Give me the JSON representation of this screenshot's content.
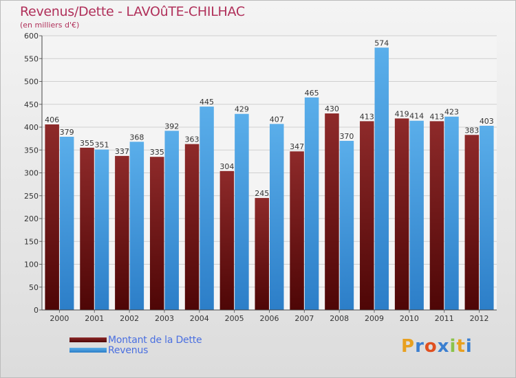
{
  "header": {
    "title": "Revenus/Dette - LAVOûTE-CHILHAC",
    "subtitle": "(en milliers d'€)"
  },
  "legend": {
    "debt_label": "Montant de la Dette",
    "revenue_label": "Revenus"
  },
  "logo": {
    "letters": [
      "P",
      "r",
      "o",
      "x",
      "i",
      "t",
      "i"
    ],
    "colors": [
      "#e8a020",
      "#3b7fd0",
      "#e05020",
      "#3b7fd0",
      "#8bc34a",
      "#e8a020",
      "#3b7fd0"
    ]
  },
  "colors": {
    "debt": "#7a1a1a",
    "revenue": "#4a9be0",
    "title": "#b0305a"
  },
  "chart_data": {
    "type": "bar",
    "title": "Revenus/Dette - LAVOûTE-CHILHAC",
    "ylabel": "(en milliers d'€)",
    "xlabel": "",
    "categories": [
      "2000",
      "2001",
      "2002",
      "2003",
      "2004",
      "2005",
      "2006",
      "2007",
      "2008",
      "2009",
      "2010",
      "2011",
      "2012"
    ],
    "series": [
      {
        "name": "Montant de la Dette",
        "values": [
          406,
          355,
          337,
          335,
          363,
          304,
          245,
          347,
          430,
          413,
          419,
          413,
          383
        ]
      },
      {
        "name": "Revenus",
        "values": [
          379,
          351,
          368,
          392,
          445,
          429,
          407,
          465,
          370,
          574,
          414,
          423,
          403
        ]
      }
    ],
    "ylim": [
      0,
      600
    ],
    "yticks": [
      0,
      50,
      100,
      150,
      200,
      250,
      300,
      350,
      400,
      450,
      500,
      550,
      600
    ],
    "grid": true,
    "legend_position": "bottom-left"
  }
}
